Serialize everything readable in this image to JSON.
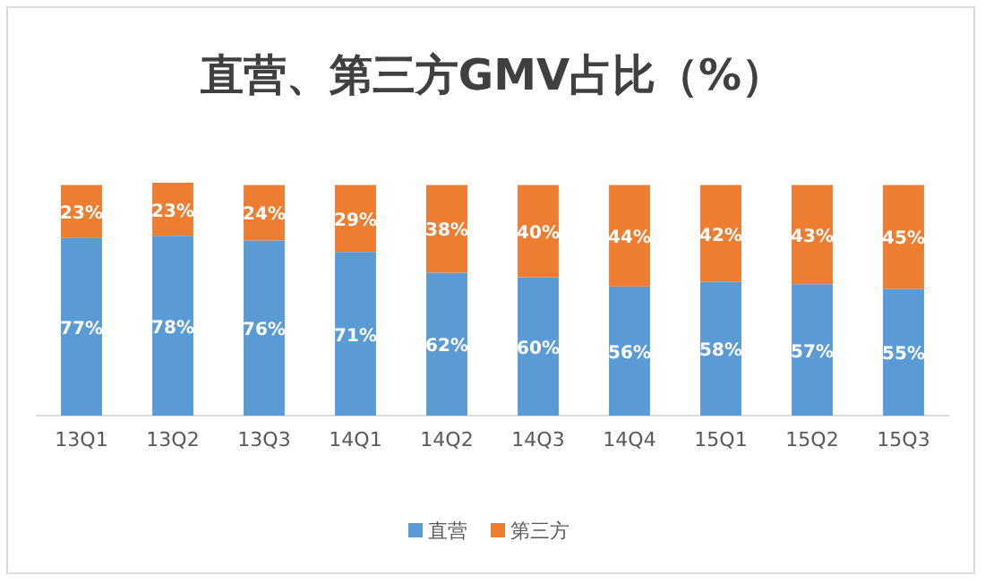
{
  "chart_data": {
    "type": "bar",
    "stacked": true,
    "title": "直营、第三方GMV占比（%）",
    "categories": [
      "13Q1",
      "13Q2",
      "13Q3",
      "14Q1",
      "14Q2",
      "14Q3",
      "14Q4",
      "15Q1",
      "15Q2",
      "15Q3"
    ],
    "series": [
      {
        "name": "直营",
        "color": "#5b9bd5",
        "values": [
          77,
          78,
          76,
          71,
          62,
          60,
          56,
          58,
          57,
          55
        ],
        "value_labels": [
          "77%",
          "78%",
          "76%",
          "71%",
          "62%",
          "60%",
          "56%",
          "58%",
          "57%",
          "55%"
        ]
      },
      {
        "name": "第三方",
        "color": "#ed7d31",
        "values": [
          23,
          23,
          24,
          29,
          38,
          40,
          44,
          42,
          43,
          45
        ],
        "value_labels": [
          "23%",
          "23%",
          "24%",
          "29%",
          "38%",
          "40%",
          "44%",
          "42%",
          "43%",
          "45%"
        ]
      }
    ],
    "legend": "bottom"
  }
}
